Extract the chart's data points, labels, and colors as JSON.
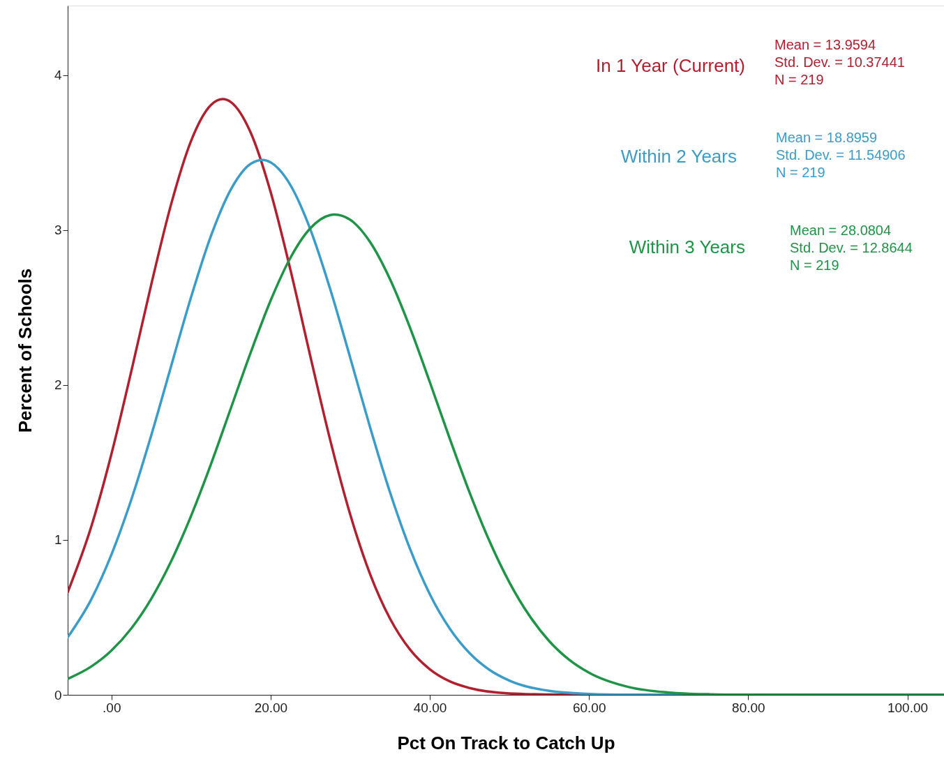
{
  "chart_data": {
    "type": "line",
    "xlabel": "Pct On Track to Catch Up",
    "ylabel": "Percent of Schools",
    "xlim": [
      -5.5,
      104.6
    ],
    "ylim": [
      0,
      4.45
    ],
    "xticks": [
      {
        "value": 0,
        "label": ".00"
      },
      {
        "value": 20,
        "label": "20.00"
      },
      {
        "value": 40,
        "label": "40.00"
      },
      {
        "value": 60,
        "label": "60.00"
      },
      {
        "value": 80,
        "label": "80.00"
      },
      {
        "value": 100,
        "label": "100.00"
      }
    ],
    "yticks": [
      0,
      1,
      2,
      3,
      4
    ],
    "grid": false,
    "legend": "top right",
    "marker": "none",
    "line_style": "solid",
    "series": [
      {
        "name": "In 1 Year (Current)",
        "color": "#b0202e",
        "x": [
          -5.5,
          -2.5,
          0,
          2.5,
          5,
          7.5,
          10,
          12.5,
          14,
          15,
          17.5,
          20,
          22.5,
          25,
          27.5,
          30,
          32.5,
          35,
          37.5,
          40,
          42.5,
          45,
          50,
          55,
          60,
          104.6
        ],
        "values": [
          0.662,
          1.092,
          1.555,
          2.09,
          2.649,
          3.168,
          3.576,
          3.808,
          3.846,
          3.827,
          3.629,
          3.246,
          2.741,
          2.183,
          1.641,
          1.164,
          0.779,
          0.492,
          0.293,
          0.165,
          0.087,
          0.044,
          0.009,
          0.002,
          0,
          0
        ]
      },
      {
        "name": "Within 2 Years",
        "color": "#3a9cc8",
        "x": [
          -5.5,
          -2.5,
          0,
          2.5,
          5,
          7.5,
          10,
          12.5,
          15,
          17.5,
          19,
          20,
          22.5,
          25,
          27.5,
          30,
          32.5,
          35,
          37.5,
          40,
          42.5,
          45,
          47.5,
          50,
          55,
          60,
          65,
          70,
          104.6
        ],
        "values": [
          0.371,
          0.62,
          0.906,
          1.261,
          1.675,
          2.123,
          2.567,
          2.963,
          3.263,
          3.429,
          3.454,
          3.438,
          3.29,
          3.004,
          2.617,
          2.176,
          1.726,
          1.307,
          0.944,
          0.65,
          0.428,
          0.269,
          0.161,
          0.092,
          0.026,
          0.006,
          0.001,
          0,
          0
        ]
      },
      {
        "name": "Within 3 Years",
        "color": "#1e9447",
        "x": [
          -5.5,
          -2.5,
          0,
          2.5,
          5,
          7.5,
          10,
          12.5,
          15,
          17.5,
          20,
          22.5,
          25,
          27.5,
          28,
          30,
          32.5,
          35,
          37.5,
          40,
          42.5,
          45,
          47.5,
          50,
          52.5,
          55,
          57.5,
          60,
          65,
          70,
          75,
          80,
          90,
          104.6
        ],
        "values": [
          0.103,
          0.184,
          0.286,
          0.429,
          0.62,
          0.862,
          1.155,
          1.489,
          1.85,
          2.211,
          2.546,
          2.823,
          3.013,
          3.098,
          3.101,
          3.067,
          2.923,
          2.683,
          2.372,
          2.019,
          1.655,
          1.306,
          0.992,
          0.726,
          0.512,
          0.347,
          0.227,
          0.143,
          0.05,
          0.015,
          0.004,
          0.001,
          0,
          0
        ]
      }
    ],
    "annotations": [
      "Mean = 13.9594",
      "Std. Dev. = 10.37441",
      "N = 219",
      "Mean = 18.8959",
      "Std. Dev. = 11.54906",
      "N = 219",
      "Mean = 28.0804",
      "Std. Dev. = 12.8644",
      "N = 219"
    ]
  }
}
